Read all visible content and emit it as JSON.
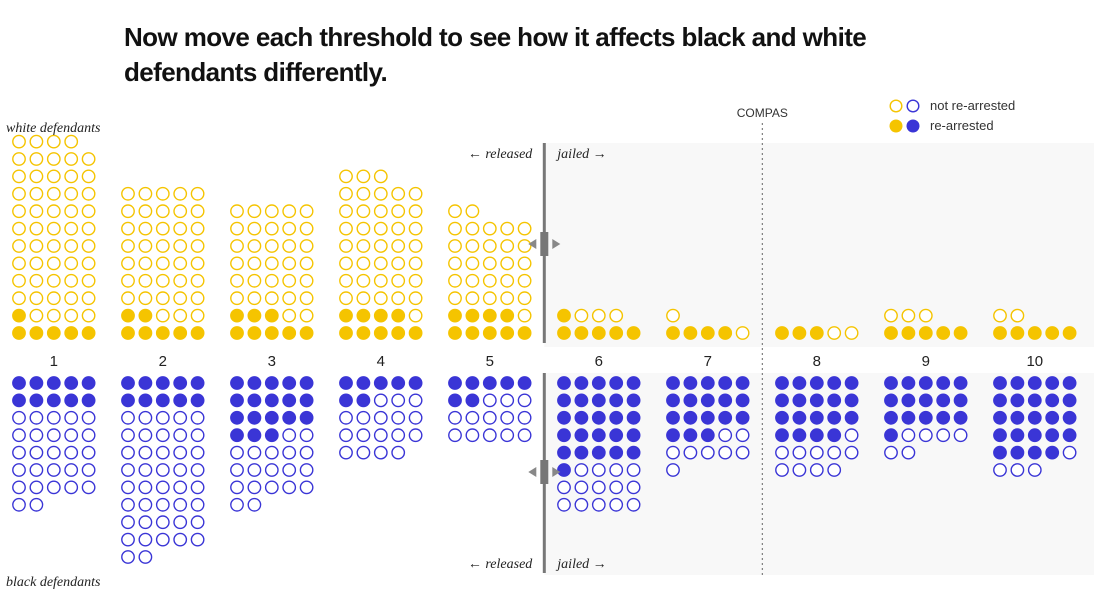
{
  "headline": "Now move each threshold to see how it affects black and white defendants differently.",
  "chart_data": {
    "type": "dot-histogram",
    "x_label_values": [
      "1",
      "2",
      "3",
      "4",
      "5",
      "6",
      "7",
      "8",
      "9",
      "10"
    ],
    "groups": [
      {
        "name": "white defendants",
        "re_arrested": [
          6,
          7,
          8,
          9,
          9,
          6,
          4,
          3,
          5,
          5
        ],
        "not_re_arrested": [
          53,
          38,
          32,
          39,
          28,
          3,
          2,
          2,
          3,
          2
        ]
      },
      {
        "name": "black defendants",
        "re_arrested": [
          10,
          10,
          18,
          7,
          7,
          26,
          18,
          19,
          16,
          24
        ],
        "not_re_arrested": [
          27,
          42,
          19,
          17,
          13,
          14,
          8,
          10,
          6,
          4
        ]
      }
    ],
    "thresholds": {
      "white_between": [
        5,
        6
      ],
      "black_between": [
        5,
        6
      ],
      "left_label": "← released",
      "right_label": "jailed →"
    },
    "compas_label": "COMPAS",
    "compas_between": [
      7,
      8
    ],
    "legend": {
      "not_rearrested": "not re-arrested",
      "rearrested": "re-arrested"
    },
    "colors": {
      "white": "#f5c400",
      "black": "#3a35d6",
      "jailed_bg": "#f8f8f8",
      "threshold": "#777777"
    }
  }
}
